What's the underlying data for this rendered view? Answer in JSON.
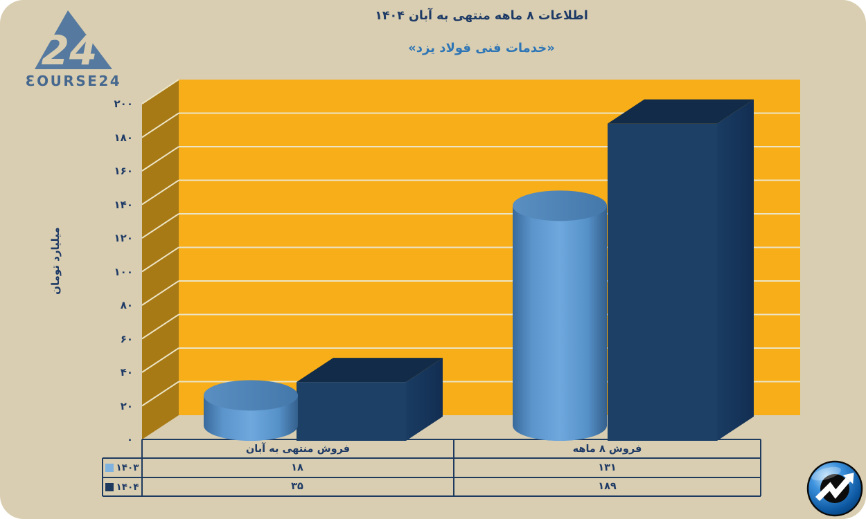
{
  "header": {
    "title": "اطلاعات ۸ ماهه منتهی به آبان ۱۴۰۴",
    "subtitle": "«خدمات فنی فولاد یزد»"
  },
  "brand": {
    "logo_number": "24",
    "logo_text": "ƐOURSE24"
  },
  "colors": {
    "background": "#d9ceb1",
    "text_navy": "#1e3a66",
    "accent_blue": "#2e75b6",
    "line_color": "#1e3a5f"
  },
  "chart_data": {
    "type": "bar",
    "style": "3d-cylinder-and-box",
    "title": "اطلاعات ۸ ماهه منتهی به آبان ۱۴۰۴",
    "subtitle": "«خدمات فنی فولاد یزد»",
    "categories": [
      "فروش منتهی به آبان",
      "فروش ۸ ماهه"
    ],
    "series": [
      {
        "name": "۱۴۰۳",
        "shape": "cylinder",
        "values": [
          18,
          131
        ],
        "display_values": [
          "۱۸",
          "۱۳۱"
        ],
        "color": "#5f9bd3",
        "color_light": "#6ea8dd",
        "color_dark": "#396a9c",
        "legend_color": "#7fb2de"
      },
      {
        "name": "۱۴۰۴",
        "shape": "box",
        "values": [
          35,
          189
        ],
        "display_values": [
          "۳۵",
          "۱۸۹"
        ],
        "color": "#1d4066",
        "color_top": "#122b48",
        "color_side": "#173760",
        "legend_color": "#1e3a5f"
      }
    ],
    "xlabel": "",
    "ylabel": "میلیارد تومان",
    "ylim": [
      0,
      200
    ],
    "ytick_step": 20,
    "yticks_display": [
      "۰",
      "۲۰",
      "۴۰",
      "۶۰",
      "۸۰",
      "۱۰۰",
      "۱۲۰",
      "۱۴۰",
      "۱۶۰",
      "۱۸۰",
      "۲۰۰"
    ],
    "grid": true,
    "legend_position": "bottom-left-table",
    "wall_color": "#f7ae18",
    "side_wall_color": "#a87a15",
    "gridline_color": "#ece4c6"
  }
}
